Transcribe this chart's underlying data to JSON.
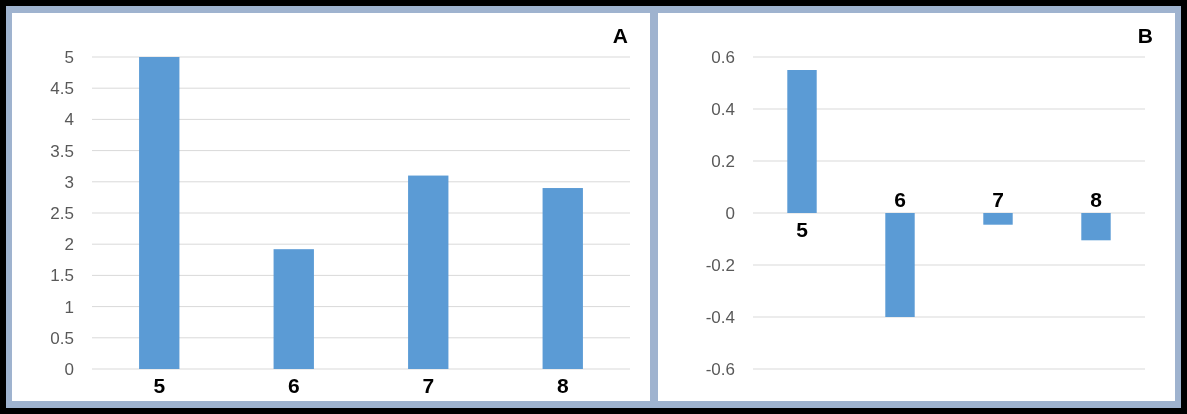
{
  "chart_data": [
    {
      "type": "bar",
      "title": "A",
      "categories": [
        "5",
        "6",
        "7",
        "8"
      ],
      "values": [
        5,
        1.92,
        3.1,
        2.9
      ],
      "color": "#5b9bd5",
      "ylim": [
        0,
        5
      ],
      "yticks": [
        0,
        0.5,
        1,
        1.5,
        2,
        2.5,
        3,
        3.5,
        4,
        4.5,
        5
      ],
      "grid": "y"
    },
    {
      "type": "bar",
      "title": "B",
      "categories": [
        "5",
        "6",
        "7",
        "8"
      ],
      "values": [
        0.55,
        -0.4,
        -0.045,
        -0.105
      ],
      "color": "#5b9bd5",
      "ylim": [
        -0.6,
        0.6
      ],
      "yticks": [
        -0.6,
        -0.4,
        -0.2,
        0,
        0.2,
        0.4,
        0.6
      ],
      "grid": "y"
    }
  ]
}
